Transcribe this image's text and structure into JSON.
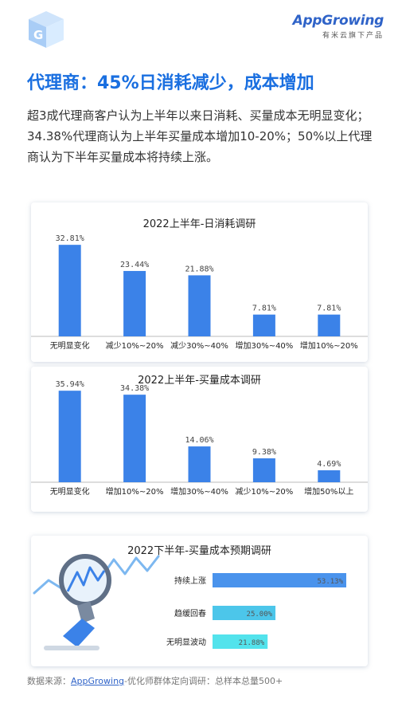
{
  "brand": {
    "name": "AppGrowing",
    "tagline": "有米云旗下产品"
  },
  "headline": "代理商：45%日消耗减少，成本增加",
  "intro": "超3成代理商客户认为上半年以来日消耗、买量成本无明显变化；34.38%代理商认为上半年买量成本增加10-20%；50%以上代理商认为下半年买量成本将持续上涨。",
  "source": {
    "prefix": "数据来源：",
    "brand": "AppGrowing",
    "suffix": "-优化师群体定向调研：总样本总量500+"
  },
  "colors": {
    "bar": "#3b82e8",
    "hbar1": "#4a93ec",
    "hbar2": "#4cc6ea",
    "hbar3": "#53e3ec",
    "accent": "#1a6fe0"
  },
  "chart_data": [
    {
      "type": "bar",
      "title": "2022上半年-日消耗调研",
      "categories": [
        "无明显变化",
        "减少10%~20%",
        "减少30%~40%",
        "增加30%~40%",
        "增加10%~20%"
      ],
      "values": [
        32.81,
        23.44,
        21.88,
        7.81,
        7.81
      ],
      "labels": [
        "32.81%",
        "23.44%",
        "21.88%",
        "7.81%",
        "7.81%"
      ],
      "ylim": [
        0,
        36
      ]
    },
    {
      "type": "bar",
      "title": "2022上半年-买量成本调研",
      "categories": [
        "无明显变化",
        "增加10%~20%",
        "增加30%~40%",
        "减少10%~20%",
        "增加50%以上"
      ],
      "values": [
        35.94,
        34.38,
        14.06,
        9.38,
        4.69
      ],
      "labels": [
        "35.94%",
        "34.38%",
        "14.06%",
        "9.38%",
        "4.69%"
      ],
      "ylim": [
        0,
        36
      ]
    },
    {
      "type": "bar",
      "orientation": "horizontal",
      "title": "2022下半年-买量成本预期调研",
      "categories": [
        "持续上涨",
        "趋缓回春",
        "无明显波动"
      ],
      "values": [
        53.13,
        25.0,
        21.88
      ],
      "labels": [
        "53.13%",
        "25.00%",
        "21.88%"
      ],
      "xlim": [
        0,
        53.13
      ]
    }
  ]
}
